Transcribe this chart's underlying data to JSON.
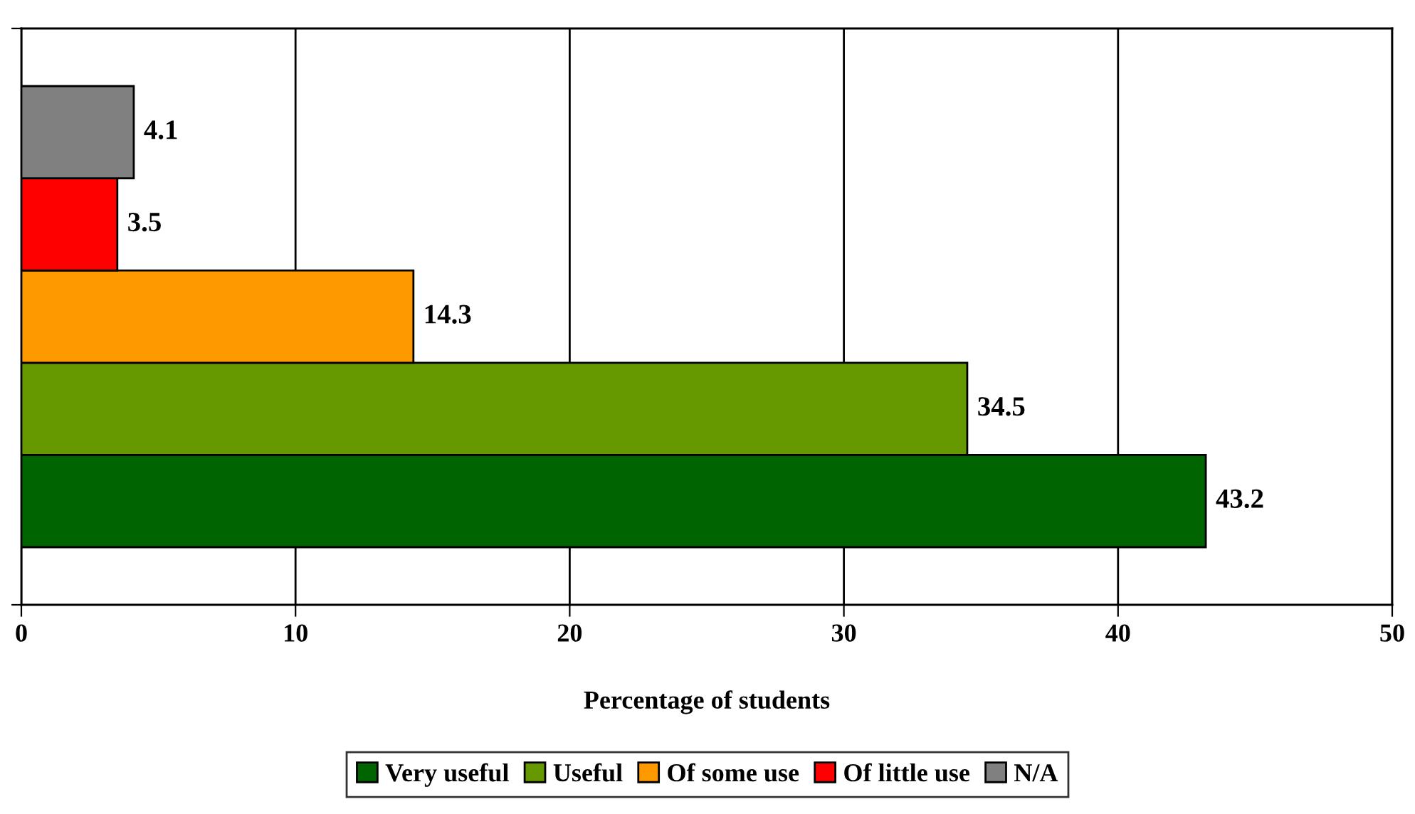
{
  "chart_data": {
    "type": "bar",
    "orientation": "horizontal",
    "categories": [
      null
    ],
    "series": [
      {
        "name": "Very useful",
        "color": "#006400",
        "values": [
          43.2
        ]
      },
      {
        "name": "Useful",
        "color": "#669900",
        "values": [
          34.5
        ]
      },
      {
        "name": "Of some use",
        "color": "#ff9900",
        "values": [
          14.3
        ]
      },
      {
        "name": "Of little use",
        "color": "#ff0000",
        "values": [
          3.5
        ]
      },
      {
        "name": "N/A",
        "color": "#808080",
        "values": [
          4.1
        ]
      }
    ],
    "xlabel": "Percentage of students",
    "xlim": [
      0,
      50
    ],
    "xticks": [
      0,
      10,
      20,
      30,
      40,
      50
    ],
    "grid": "x",
    "legend": "bottom",
    "data_labels": true,
    "tick_labels": "x"
  }
}
